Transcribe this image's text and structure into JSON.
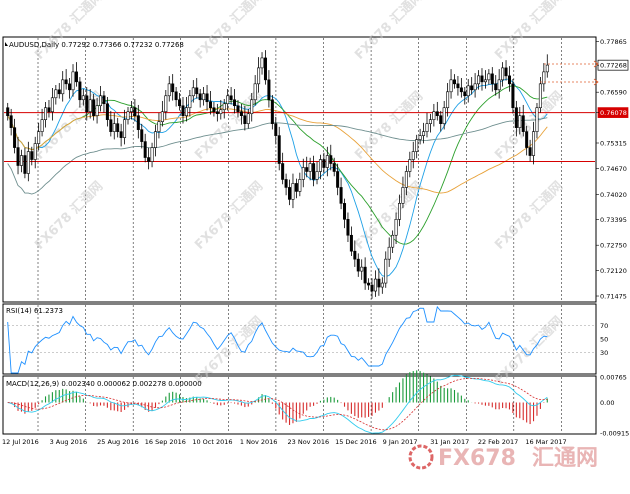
{
  "header": {
    "symbol_line": "AUDUSD,Daily  0.77292 0.77366 0.77232 0.77268"
  },
  "watermark": {
    "text": "FX678",
    "cn": "汇通网",
    "logo_text": "FX678",
    "logo_cn": "汇通网"
  },
  "colors": {
    "candle": "#000000",
    "ma_fast": "#1ea0e6",
    "ma_mid": "#2ca02c",
    "ma_slow": "#e8a23a",
    "ma_long": "#6f8f8f",
    "hline": "#d60000",
    "rsi": "#1e90ff",
    "macd_pos": "#1a9a3a",
    "macd_neg": "#d62c2c",
    "macd_line": "#33ccee",
    "signal_line": "#d62c2c"
  },
  "chart_data": [
    {
      "type": "candlestick",
      "title": "AUDUSD,Daily  0.77292 0.77366 0.77232 0.77268",
      "price_ticks": [
        "0.77865",
        "0.77268",
        "0.76590",
        "0.76078",
        "0.75315",
        "0.74670",
        "0.74020",
        "0.73395",
        "0.72750",
        "0.72120",
        "0.71475"
      ],
      "ylim": [
        0.7135,
        0.7795
      ],
      "x_labels": [
        "12 Jul 2016",
        "3 Aug 2016",
        "25 Aug 2016",
        "16 Sep 2016",
        "10 Oct 2016",
        "1 Nov 2016",
        "23 Nov 2016",
        "15 Dec 2016",
        "9 Jan 2017",
        "31 Jan 2017",
        "22 Feb 2017",
        "16 Mar 2017"
      ],
      "current_price": "0.77268",
      "hlines": [
        {
          "value": 0.76078,
          "label": "0.76078"
        },
        {
          "value": 0.7485,
          "label": "0.74850"
        }
      ],
      "closes": [
        0.76,
        0.757,
        0.752,
        0.7475,
        0.75,
        0.7455,
        0.751,
        0.749,
        0.753,
        0.756,
        0.759,
        0.762,
        0.761,
        0.7645,
        0.7665,
        0.7655,
        0.769,
        0.768,
        0.7665,
        0.771,
        0.7685,
        0.764,
        0.765,
        0.761,
        0.764,
        0.76,
        0.7625,
        0.765,
        0.763,
        0.759,
        0.756,
        0.758,
        0.756,
        0.7545,
        0.759,
        0.761,
        0.762,
        0.76,
        0.7565,
        0.7535,
        0.7495,
        0.7485,
        0.752,
        0.756,
        0.7585,
        0.761,
        0.765,
        0.768,
        0.766,
        0.764,
        0.7625,
        0.76,
        0.762,
        0.765,
        0.767,
        0.7655,
        0.764,
        0.7655,
        0.7635,
        0.762,
        0.761,
        0.7605,
        0.7615,
        0.763,
        0.765,
        0.764,
        0.7625,
        0.761,
        0.76,
        0.758,
        0.7605,
        0.764,
        0.768,
        0.772,
        0.7745,
        0.769,
        0.764,
        0.758,
        0.755,
        0.748,
        0.744,
        0.742,
        0.739,
        0.743,
        0.741,
        0.744,
        0.747,
        0.746,
        0.748,
        0.744,
        0.746,
        0.749,
        0.747,
        0.75,
        0.748,
        0.746,
        0.742,
        0.738,
        0.734,
        0.73,
        0.726,
        0.724,
        0.721,
        0.722,
        0.718,
        0.7175,
        0.716,
        0.719,
        0.717,
        0.718,
        0.724,
        0.727,
        0.73,
        0.734,
        0.738,
        0.742,
        0.746,
        0.749,
        0.751,
        0.754,
        0.755,
        0.756,
        0.758,
        0.759,
        0.761,
        0.76,
        0.758,
        0.762,
        0.766,
        0.769,
        0.768,
        0.767,
        0.766,
        0.765,
        0.7675,
        0.7665,
        0.768,
        0.77,
        0.7685,
        0.769,
        0.7705,
        0.768,
        0.7665,
        0.769,
        0.772,
        0.77,
        0.768,
        0.762,
        0.757,
        0.76,
        0.756,
        0.752,
        0.75,
        0.756,
        0.762,
        0.768,
        0.771,
        0.7727
      ]
    },
    {
      "type": "line",
      "title": "RSI(14) 61.2373",
      "ticks": [
        "70",
        "50",
        "30"
      ],
      "ylim": [
        0,
        100
      ],
      "levels": [
        70,
        30
      ]
    },
    {
      "type": "bar",
      "title": "MACD(12,26,9) 0.002340 0.000062 0.002278 0.000000",
      "ticks": [
        "0.00765",
        "0.00",
        "-0.00915"
      ],
      "ylim": [
        -0.00915,
        0.00765
      ]
    }
  ]
}
